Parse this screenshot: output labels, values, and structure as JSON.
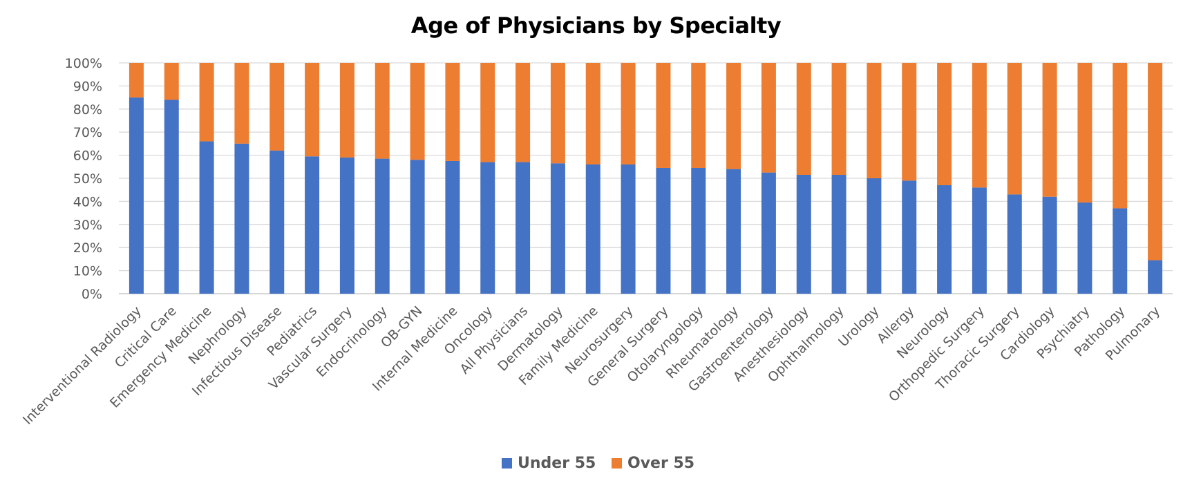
{
  "chart_data": {
    "type": "bar",
    "stacked": true,
    "percent_stacked": true,
    "title": "Age of Physicians by Specialty",
    "xlabel": "",
    "ylabel": "",
    "ylim": [
      0,
      100
    ],
    "y_ticks": [
      "0%",
      "10%",
      "20%",
      "30%",
      "40%",
      "50%",
      "60%",
      "70%",
      "80%",
      "90%",
      "100%"
    ],
    "grid": true,
    "legend_position": "bottom",
    "categories": [
      "Interventional Radiology",
      "Critical Care",
      "Emergency Medicine",
      "Nephrology",
      "Infectious Disease",
      "Pediatrics",
      "Vascular Surgery",
      "Endocrinology",
      "OB-GYN",
      "Internal Medicine",
      "Oncology",
      "All Physicians",
      "Dermatology",
      "Family Medicine",
      "Neurosurgery",
      "General Surgery",
      "Otolaryngology",
      "Rheumatology",
      "Gastroenterology",
      "Anesthesiology",
      "Ophthalmology",
      "Urology",
      "Allergy",
      "Neurology",
      "Orthopedic Surgery",
      "Thoracic Surgery",
      "Cardiology",
      "Psychiatry",
      "Pathology",
      "Pulmonary"
    ],
    "series": [
      {
        "name": "Under 55",
        "color": "#4472C4",
        "values": [
          85,
          84,
          66,
          65,
          62,
          59.5,
          59,
          58.5,
          58,
          57.5,
          57,
          57,
          56.5,
          56,
          56,
          54.5,
          54.5,
          54,
          52.5,
          51.5,
          51.5,
          50,
          49,
          47,
          46,
          43,
          42,
          39.5,
          37,
          14.5
        ]
      },
      {
        "name": "Over 55",
        "color": "#ED7D31",
        "values": [
          15,
          16,
          34,
          35,
          38,
          40.5,
          41,
          41.5,
          42,
          42.5,
          43,
          43,
          43.5,
          44,
          44,
          45.5,
          45.5,
          46,
          47.5,
          48.5,
          48.5,
          50,
          51,
          53,
          54,
          57,
          58,
          60.5,
          63,
          85.5
        ]
      }
    ],
    "gridline_color": "#D9D9D9",
    "axis_color": "#BFBFBF"
  }
}
